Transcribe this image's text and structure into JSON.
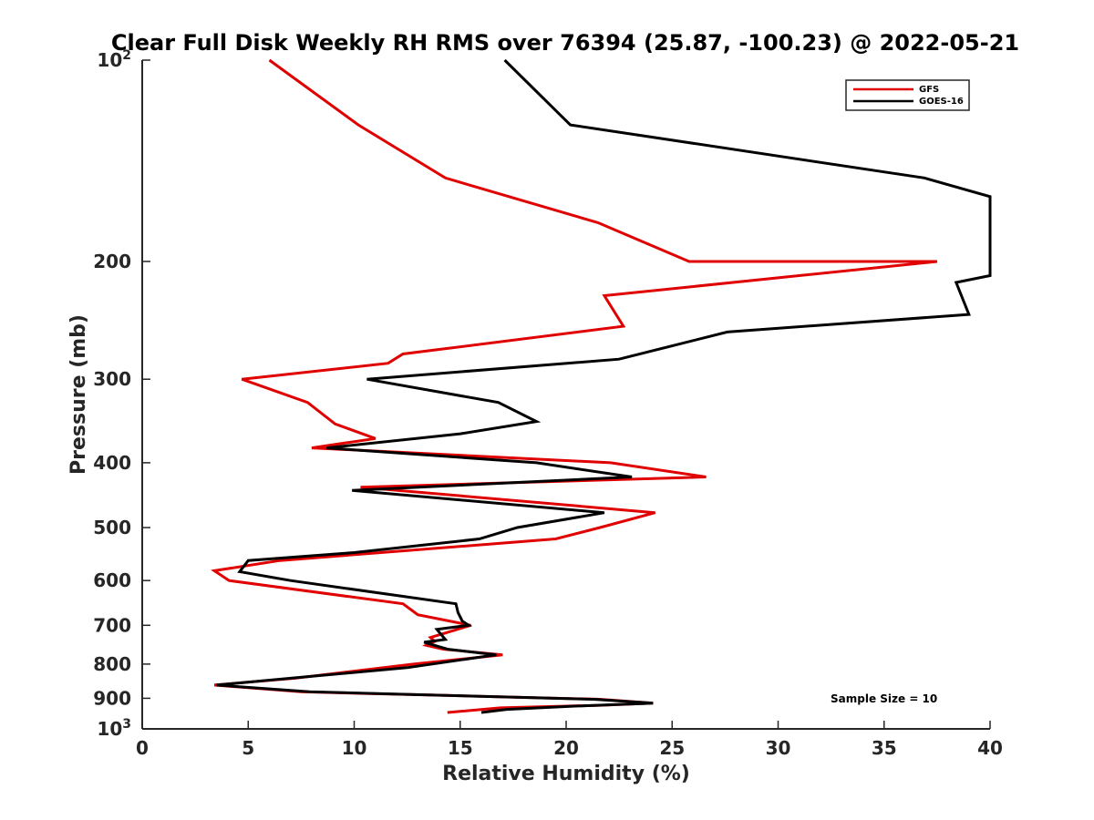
{
  "chart_data": {
    "type": "line",
    "title": "Clear Full Disk Weekly RH RMS over 76394 (25.87, -100.23) @ 2022-05-21",
    "xlabel": "Relative Humidity (%)",
    "ylabel": "Pressure (mb)",
    "xlim": [
      0,
      40
    ],
    "ylim": [
      100,
      1000
    ],
    "y_scale": "log",
    "y_reversed": true,
    "x_ticks": [
      "0",
      "5",
      "10",
      "15",
      "20",
      "25",
      "30",
      "35",
      "40"
    ],
    "y_ticks": [
      {
        "value": 100,
        "base": "10",
        "exp": "2"
      },
      {
        "value": 200,
        "label": "200"
      },
      {
        "value": 300,
        "label": "300"
      },
      {
        "value": 400,
        "label": "400"
      },
      {
        "value": 500,
        "label": "500"
      },
      {
        "value": 600,
        "label": "600"
      },
      {
        "value": 700,
        "label": "700"
      },
      {
        "value": 800,
        "label": "800"
      },
      {
        "value": 900,
        "label": "900"
      },
      {
        "value": 1000,
        "base": "10",
        "exp": "3"
      }
    ],
    "legend_position": "top-right",
    "annotation": "Sample Size = 10",
    "series": [
      {
        "name": "GFS",
        "color": "#e00000",
        "points": [
          [
            6.0,
            100
          ],
          [
            10.2,
            125
          ],
          [
            14.3,
            150
          ],
          [
            21.5,
            175
          ],
          [
            25.8,
            200
          ],
          [
            37.5,
            200
          ],
          [
            21.8,
            225
          ],
          [
            22.7,
            250
          ],
          [
            12.3,
            275
          ],
          [
            11.6,
            284
          ],
          [
            4.7,
            300
          ],
          [
            7.8,
            325
          ],
          [
            9.1,
            350
          ],
          [
            11.0,
            368
          ],
          [
            8.0,
            380
          ],
          [
            22.1,
            400
          ],
          [
            26.6,
            420
          ],
          [
            10.3,
            435
          ],
          [
            24.2,
            475
          ],
          [
            21.6,
            500
          ],
          [
            19.5,
            520
          ],
          [
            6.5,
            560
          ],
          [
            3.4,
            580
          ],
          [
            4.1,
            600
          ],
          [
            12.3,
            650
          ],
          [
            13.0,
            675
          ],
          [
            15.5,
            700
          ],
          [
            13.6,
            730
          ],
          [
            13.8,
            740
          ],
          [
            13.4,
            750
          ],
          [
            14.2,
            760
          ],
          [
            17.0,
            775
          ],
          [
            12.8,
            800
          ],
          [
            7.2,
            840
          ],
          [
            3.4,
            860
          ],
          [
            7.5,
            880
          ],
          [
            21.6,
            903
          ],
          [
            24.1,
            915
          ],
          [
            21.6,
            922
          ],
          [
            16.9,
            930
          ],
          [
            14.4,
            945
          ]
        ]
      },
      {
        "name": "GOES-16",
        "color": "#000000",
        "points": [
          [
            17.1,
            100
          ],
          [
            20.2,
            125
          ],
          [
            36.9,
            150
          ],
          [
            40.0,
            160
          ],
          [
            40.0,
            210
          ],
          [
            38.4,
            215
          ],
          [
            39.0,
            240
          ],
          [
            27.6,
            255
          ],
          [
            22.5,
            280
          ],
          [
            10.6,
            300
          ],
          [
            16.8,
            325
          ],
          [
            18.6,
            347
          ],
          [
            15.0,
            362
          ],
          [
            8.7,
            380
          ],
          [
            18.6,
            400
          ],
          [
            23.1,
            420
          ],
          [
            9.9,
            440
          ],
          [
            21.8,
            475
          ],
          [
            17.7,
            500
          ],
          [
            15.9,
            520
          ],
          [
            10.0,
            545
          ],
          [
            5.0,
            560
          ],
          [
            4.6,
            582
          ],
          [
            7.0,
            600
          ],
          [
            14.8,
            650
          ],
          [
            14.9,
            670
          ],
          [
            15.1,
            690
          ],
          [
            15.4,
            700
          ],
          [
            13.9,
            710
          ],
          [
            14.3,
            735
          ],
          [
            13.3,
            742
          ],
          [
            14.4,
            760
          ],
          [
            16.7,
            775
          ],
          [
            12.5,
            810
          ],
          [
            7.0,
            840
          ],
          [
            3.5,
            860
          ],
          [
            7.9,
            880
          ],
          [
            21.3,
            903
          ],
          [
            24.1,
            915
          ],
          [
            20.3,
            925
          ],
          [
            17.2,
            935
          ],
          [
            16.0,
            945
          ]
        ]
      }
    ]
  }
}
